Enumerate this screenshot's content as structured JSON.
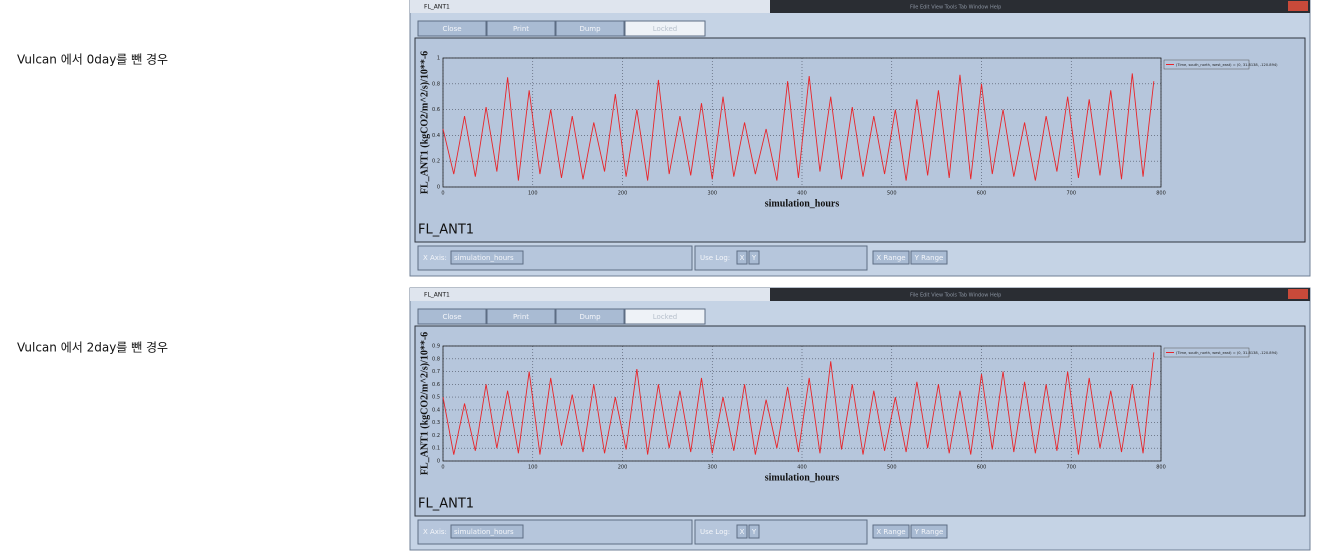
{
  "captions": [
    "Vulcan 에서 0day를 뺀 경우",
    "Vulcan 에서 2day를 뺀 경우"
  ],
  "windows": [
    {
      "title": "FL_ANT1",
      "menu": "File  Edit  View  Tools  Tab  Window  Help",
      "buttons": [
        "Close",
        "Print",
        "Dump",
        "Locked"
      ],
      "bottom": {
        "x_axis_label": "X Axis:",
        "x_axis_value": "simulation_hours",
        "use_log": "Use Log:",
        "log_x": "X",
        "log_y": "Y",
        "x_range": "X Range",
        "y_range": "Y Range"
      }
    },
    {
      "title": "FL_ANT1",
      "menu": "File  Edit  View  Tools  Tab  Window  Help",
      "buttons": [
        "Close",
        "Print",
        "Dump",
        "Locked"
      ],
      "bottom": {
        "x_axis_label": "X Axis:",
        "x_axis_value": "simulation_hours",
        "use_log": "Use Log:",
        "log_x": "X",
        "log_y": "Y",
        "x_range": "X Range",
        "y_range": "Y Range"
      }
    }
  ],
  "chart_data": [
    {
      "type": "line",
      "title": "FL_ANT1",
      "x_label": "simulation_hours",
      "y_label": "FL_ANT1 (kgCO2/m^2/s)/10**-6",
      "xlim": [
        0,
        800
      ],
      "xticks": [
        0,
        100,
        200,
        300,
        400,
        500,
        600,
        700,
        800
      ],
      "ylim": [
        0,
        1
      ],
      "yticks": [
        0,
        0.2,
        0.4,
        0.6,
        0.8,
        1
      ],
      "grid": true,
      "x": [
        0,
        12,
        24,
        36,
        48,
        60,
        72,
        84,
        96,
        108,
        120,
        132,
        144,
        156,
        168,
        180,
        192,
        204,
        216,
        228,
        240,
        252,
        264,
        276,
        288,
        300,
        312,
        324,
        336,
        348,
        360,
        372,
        384,
        396,
        408,
        420,
        432,
        444,
        456,
        468,
        480,
        492,
        504,
        516,
        528,
        540,
        552,
        564,
        576,
        588,
        600,
        612,
        624,
        636,
        648,
        660,
        672,
        684,
        696,
        708,
        720,
        732,
        744,
        756,
        768,
        780,
        792
      ],
      "series": [
        {
          "name": "(Time, south_north, west_east) = (0, 31.8138, -120.894)",
          "color": "#e8252a",
          "values": [
            0.45,
            0.1,
            0.55,
            0.08,
            0.62,
            0.12,
            0.85,
            0.05,
            0.75,
            0.1,
            0.6,
            0.07,
            0.55,
            0.06,
            0.5,
            0.12,
            0.72,
            0.08,
            0.6,
            0.05,
            0.83,
            0.1,
            0.55,
            0.09,
            0.65,
            0.06,
            0.7,
            0.08,
            0.5,
            0.1,
            0.45,
            0.05,
            0.82,
            0.07,
            0.86,
            0.12,
            0.7,
            0.06,
            0.62,
            0.08,
            0.55,
            0.1,
            0.6,
            0.05,
            0.68,
            0.09,
            0.75,
            0.07,
            0.87,
            0.06,
            0.8,
            0.1,
            0.6,
            0.08,
            0.5,
            0.05,
            0.55,
            0.12,
            0.7,
            0.07,
            0.68,
            0.09,
            0.75,
            0.06,
            0.88,
            0.08,
            0.82
          ]
        }
      ]
    },
    {
      "type": "line",
      "title": "FL_ANT1",
      "x_label": "simulation_hours",
      "y_label": "FL_ANT1 (kgCO2/m^2/s)/10**-6",
      "xlim": [
        0,
        800
      ],
      "xticks": [
        0,
        100,
        200,
        300,
        400,
        500,
        600,
        700,
        800
      ],
      "ylim": [
        0,
        0.9
      ],
      "yticks": [
        0,
        0.1,
        0.2,
        0.3,
        0.4,
        0.5,
        0.6,
        0.7,
        0.8,
        0.9
      ],
      "grid": true,
      "x": [
        0,
        12,
        24,
        36,
        48,
        60,
        72,
        84,
        96,
        108,
        120,
        132,
        144,
        156,
        168,
        180,
        192,
        204,
        216,
        228,
        240,
        252,
        264,
        276,
        288,
        300,
        312,
        324,
        336,
        348,
        360,
        372,
        384,
        396,
        408,
        420,
        432,
        444,
        456,
        468,
        480,
        492,
        504,
        516,
        528,
        540,
        552,
        564,
        576,
        588,
        600,
        612,
        624,
        636,
        648,
        660,
        672,
        684,
        696,
        708,
        720,
        732,
        744,
        756,
        768,
        780,
        792
      ],
      "series": [
        {
          "name": "(Time, south_north, west_east) = (0, 31.8138, -120.894)",
          "color": "#e8252a",
          "values": [
            0.5,
            0.05,
            0.45,
            0.08,
            0.6,
            0.1,
            0.55,
            0.06,
            0.7,
            0.05,
            0.65,
            0.12,
            0.52,
            0.07,
            0.6,
            0.06,
            0.5,
            0.09,
            0.72,
            0.05,
            0.6,
            0.1,
            0.55,
            0.07,
            0.65,
            0.06,
            0.5,
            0.08,
            0.6,
            0.05,
            0.48,
            0.1,
            0.58,
            0.07,
            0.65,
            0.06,
            0.78,
            0.09,
            0.6,
            0.05,
            0.55,
            0.08,
            0.5,
            0.07,
            0.62,
            0.1,
            0.6,
            0.06,
            0.55,
            0.05,
            0.68,
            0.09,
            0.7,
            0.07,
            0.62,
            0.06,
            0.6,
            0.08,
            0.7,
            0.05,
            0.65,
            0.1,
            0.55,
            0.07,
            0.6,
            0.06,
            0.85
          ]
        }
      ]
    }
  ]
}
